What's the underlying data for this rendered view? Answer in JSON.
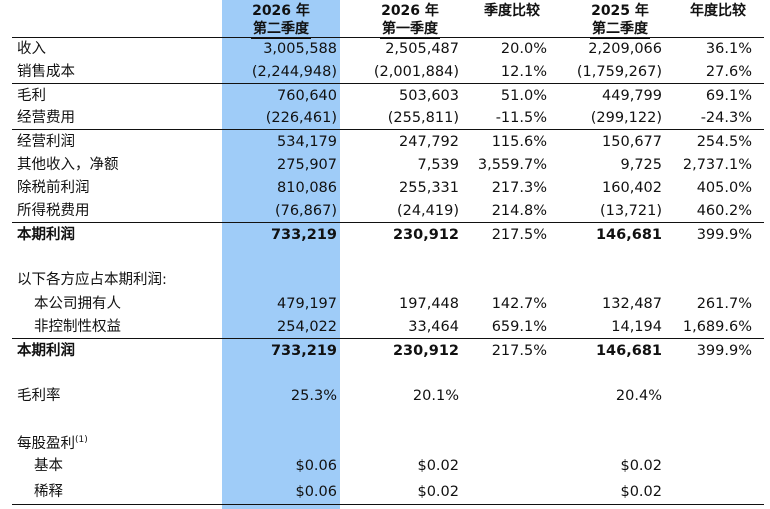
{
  "headers": {
    "c1": [
      "2026 年",
      "第二季度"
    ],
    "c2": [
      "2026 年",
      "第一季度"
    ],
    "c3": "季度比较",
    "c4": [
      "2025 年",
      "第二季度"
    ],
    "c5": "年度比较"
  },
  "rows": [
    {
      "label": "收入",
      "c1": "3,005,588",
      "c2": "2,505,487",
      "c3": "20.0%",
      "c4": "2,209,066",
      "c5": "36.1%"
    },
    {
      "label": "销售成本",
      "c1": "(2,244,948)",
      "c2": "(2,001,884)",
      "c3": "12.1%",
      "c4": "(1,759,267)",
      "c5": "27.6%"
    },
    {
      "label": "毛利",
      "c1": "760,640",
      "c2": "503,603",
      "c3": "51.0%",
      "c4": "449,799",
      "c5": "69.1%"
    },
    {
      "label": "经营费用",
      "c1": "(226,461)",
      "c2": "(255,811)",
      "c3": "-11.5%",
      "c4": "(299,122)",
      "c5": "-24.3%"
    },
    {
      "label": "经营利润",
      "c1": "534,179",
      "c2": "247,792",
      "c3": "115.6%",
      "c4": "150,677",
      "c5": "254.5%"
    },
    {
      "label": "其他收入，净额",
      "c1": "275,907",
      "c2": "7,539",
      "c3": "3,559.7%",
      "c4": "9,725",
      "c5": "2,737.1%"
    },
    {
      "label": "除税前利润",
      "c1": "810,086",
      "c2": "255,331",
      "c3": "217.3%",
      "c4": "160,402",
      "c5": "405.0%"
    },
    {
      "label": "所得税费用",
      "c1": "(76,867)",
      "c2": "(24,419)",
      "c3": "214.8%",
      "c4": "(13,721)",
      "c5": "460.2%"
    },
    {
      "label": "本期利润",
      "c1": "733,219",
      "c2": "230,912",
      "c3": "217.5%",
      "c4": "146,681",
      "c5": "399.9%"
    },
    {
      "label": "以下各方应占本期利润:"
    },
    {
      "label": "本公司拥有人",
      "c1": "479,197",
      "c2": "197,448",
      "c3": "142.7%",
      "c4": "132,487",
      "c5": "261.7%"
    },
    {
      "label": "非控制性权益",
      "c1": "254,022",
      "c2": "33,464",
      "c3": "659.1%",
      "c4": "14,194",
      "c5": "1,689.6%"
    },
    {
      "label": "本期利润",
      "c1": "733,219",
      "c2": "230,912",
      "c3": "217.5%",
      "c4": "146,681",
      "c5": "399.9%"
    },
    {
      "label": "毛利率",
      "c1": "25.3%",
      "c2": "20.1%",
      "c4": "20.4%"
    },
    {
      "label": "每股盈利",
      "sup": "(1)"
    },
    {
      "label": "基本",
      "c1": "$0.06",
      "c2": "$0.02",
      "c4": "$0.02"
    },
    {
      "label": "稀释",
      "c1": "$0.06",
      "c2": "$0.02",
      "c4": "$0.02"
    }
  ]
}
